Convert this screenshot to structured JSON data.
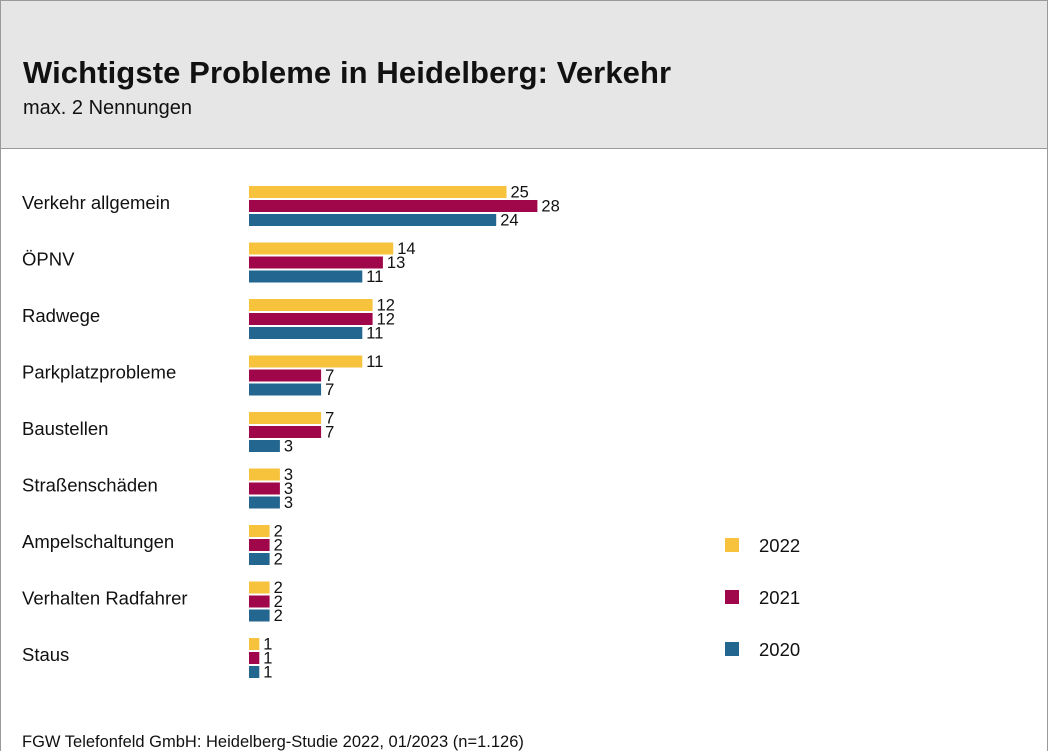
{
  "title": "Wichtigste Probleme in Heidelberg: Verkehr",
  "subtitle": "max. 2 Nennungen",
  "footer": "FGW Telefonfeld GmbH: Heidelberg-Studie 2022, 01/2023 (n=1.126)",
  "colors": {
    "2022": "#f8c33c",
    "2021": "#a0074a",
    "2020": "#236690"
  },
  "chart_data": {
    "type": "bar",
    "orientation": "horizontal",
    "categories": [
      "Verkehr allgemein",
      "ÖPNV",
      "Radwege",
      "Parkplatzprobleme",
      "Baustellen",
      "Straßenschäden",
      "Ampelschaltungen",
      "Verhalten Radfahrer",
      "Staus"
    ],
    "series": [
      {
        "name": "2022",
        "values": [
          25,
          14,
          12,
          11,
          7,
          3,
          2,
          2,
          1
        ]
      },
      {
        "name": "2021",
        "values": [
          28,
          13,
          12,
          7,
          7,
          3,
          2,
          2,
          1
        ]
      },
      {
        "name": "2020",
        "values": [
          24,
          11,
          11,
          7,
          3,
          3,
          2,
          2,
          1
        ]
      }
    ],
    "legend_position": "right",
    "grid": false
  }
}
